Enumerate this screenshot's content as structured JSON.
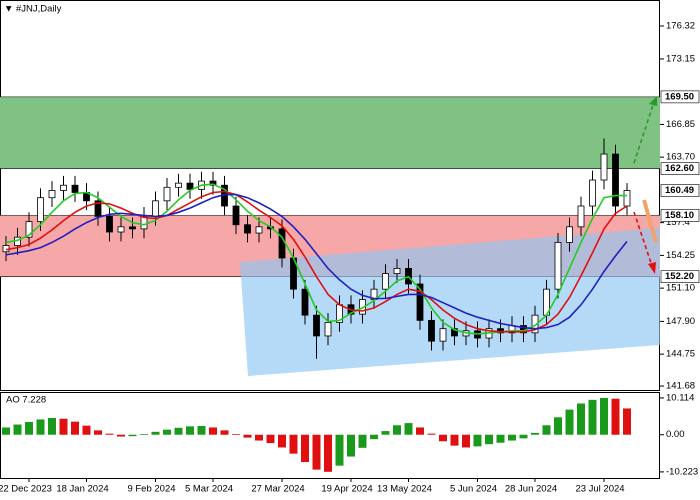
{
  "chart_data": {
    "type": "candlestick",
    "title": "#JNJ,Daily",
    "categories": [
      null,
      null,
      "22 Dec 2023",
      null,
      null,
      null,
      null,
      "18 Jan 2024",
      null,
      null,
      null,
      null,
      null,
      "9 Feb 2024",
      null,
      null,
      null,
      null,
      "5 Mar 2024",
      null,
      null,
      null,
      null,
      null,
      "27 Mar 2024",
      null,
      null,
      null,
      null,
      null,
      "19 Apr 2024",
      null,
      null,
      null,
      null,
      "13 May 2024",
      null,
      null,
      null,
      null,
      null,
      "5 Jun 2024",
      null,
      null,
      null,
      null,
      "28 Jun 2024",
      null,
      null,
      null,
      null,
      null,
      "23 Jul 2024",
      null,
      null
    ],
    "open": [
      154.6,
      155.2,
      156.0,
      157.5,
      159.8,
      160.5,
      161.0,
      160.3,
      159.5,
      158.0,
      156.5,
      157.0,
      156.8,
      158.0,
      159.5,
      160.8,
      161.2,
      160.6,
      161.4,
      161.0,
      159.0,
      157.2,
      156.4,
      157.0,
      156.8,
      154.0,
      151.0,
      148.5,
      146.5,
      147.8,
      149.5,
      148.6,
      150.0,
      151.0,
      152.5,
      153.0,
      151.5,
      148.0,
      146.0,
      147.2,
      146.5,
      147.0,
      146.3,
      147.2,
      146.8,
      147.5,
      146.8,
      148.5,
      151.0,
      155.5,
      157.0,
      159.0,
      161.5,
      164.0,
      159.0
    ],
    "high": [
      156.1,
      156.9,
      158.4,
      160.7,
      161.4,
      161.9,
      161.9,
      161.2,
      160.4,
      158.9,
      157.9,
      157.9,
      158.9,
      160.4,
      161.7,
      162.1,
      162.1,
      162.3,
      162.3,
      161.9,
      159.9,
      158.1,
      157.9,
      157.9,
      157.7,
      154.9,
      151.9,
      149.4,
      148.7,
      150.4,
      150.4,
      150.9,
      151.9,
      153.4,
      153.9,
      153.9,
      152.4,
      148.9,
      148.1,
      148.1,
      147.9,
      147.9,
      148.1,
      148.1,
      148.4,
      148.4,
      149.4,
      151.9,
      156.4,
      157.9,
      159.9,
      162.4,
      165.5,
      164.9,
      161.2
    ],
    "low": [
      153.7,
      154.3,
      155.1,
      156.6,
      158.9,
      159.6,
      159.4,
      158.6,
      157.1,
      155.6,
      155.6,
      155.9,
      155.9,
      157.1,
      158.6,
      159.9,
      159.7,
      159.7,
      160.1,
      158.1,
      156.3,
      155.5,
      155.5,
      155.9,
      153.1,
      150.1,
      147.6,
      144.3,
      145.6,
      146.9,
      147.7,
      147.7,
      149.1,
      150.1,
      151.6,
      150.6,
      147.1,
      145.1,
      145.1,
      145.6,
      145.6,
      145.4,
      145.4,
      145.9,
      145.9,
      145.9,
      145.9,
      147.6,
      150.1,
      154.6,
      156.1,
      158.1,
      160.6,
      158.1,
      158.1
    ],
    "close": [
      155.2,
      156.0,
      157.5,
      159.8,
      160.5,
      161.0,
      160.3,
      159.5,
      158.0,
      156.5,
      157.0,
      156.8,
      158.0,
      159.5,
      160.8,
      161.2,
      160.6,
      161.4,
      161.0,
      159.0,
      157.2,
      156.4,
      157.0,
      156.8,
      154.0,
      151.0,
      148.5,
      146.5,
      147.8,
      149.5,
      148.6,
      150.0,
      151.0,
      152.5,
      153.0,
      151.5,
      148.0,
      146.0,
      147.2,
      146.5,
      147.0,
      146.3,
      147.2,
      146.8,
      147.5,
      146.8,
      148.5,
      151.0,
      155.5,
      157.0,
      159.0,
      161.5,
      164.0,
      159.0,
      160.49
    ],
    "up_color": "#ffffff",
    "down_color": "#000000",
    "series": [
      {
        "color": "#22cc22",
        "values": [
          155.5,
          155.7,
          156.2,
          157.2,
          158.4,
          159.5,
          160.2,
          160.3,
          159.8,
          158.9,
          158.0,
          157.4,
          157.2,
          157.6,
          158.5,
          159.6,
          160.5,
          161.0,
          161.1,
          160.6,
          159.6,
          158.5,
          157.6,
          157.0,
          156.0,
          154.0,
          151.5,
          149.0,
          147.9,
          148.0,
          148.7,
          149.2,
          149.9,
          150.8,
          151.8,
          152.2,
          151.0,
          149.2,
          147.8,
          147.1,
          146.8,
          146.7,
          146.8,
          146.9,
          147.0,
          147.0,
          147.5,
          148.5,
          150.5,
          153.0,
          155.5,
          157.8,
          159.8,
          160.0,
          160.0
        ]
      },
      {
        "color": "#e01010",
        "values": [
          154.8,
          155.0,
          155.3,
          155.9,
          156.7,
          157.6,
          158.4,
          159.0,
          159.3,
          159.2,
          158.8,
          158.3,
          157.9,
          157.8,
          158.1,
          158.7,
          159.3,
          159.9,
          160.3,
          160.4,
          160.1,
          159.4,
          158.6,
          157.9,
          157.1,
          155.8,
          154.1,
          152.2,
          150.5,
          149.5,
          149.0,
          148.9,
          149.2,
          149.8,
          150.5,
          151.0,
          150.8,
          150.0,
          149.0,
          148.2,
          147.6,
          147.2,
          147.0,
          146.9,
          146.9,
          146.9,
          147.1,
          147.6,
          148.6,
          150.2,
          152.3,
          154.5,
          156.8,
          158.3,
          159.0
        ]
      },
      {
        "color": "#2020c0",
        "values": [
          154.3,
          154.5,
          154.7,
          155.0,
          155.5,
          156.1,
          156.8,
          157.4,
          157.9,
          158.2,
          158.3,
          158.2,
          158.1,
          158.0,
          158.1,
          158.4,
          158.8,
          159.3,
          159.8,
          160.1,
          160.1,
          159.8,
          159.3,
          158.7,
          158.0,
          157.0,
          155.8,
          154.4,
          153.0,
          151.9,
          151.0,
          150.4,
          150.1,
          150.1,
          150.3,
          150.5,
          150.5,
          150.2,
          149.7,
          149.2,
          148.7,
          148.3,
          148.0,
          147.7,
          147.5,
          147.3,
          147.2,
          147.3,
          147.6,
          148.3,
          149.5,
          151.0,
          152.7,
          154.2,
          155.6
        ]
      }
    ],
    "ylim": [
      141.3,
      178.82
    ],
    "yticks": [
      176.32,
      173.15,
      166.85,
      {
        "value": 163.7,
        "label": "163.70"
      },
      157.4,
      154.25,
      {
        "value": 151.1,
        "label": "151.10"
      },
      {
        "value": 147.9,
        "label": "147.90"
      },
      144.75,
      141.68
    ],
    "resistance_zone": [
      {
        "value": 169.5,
        "label": "169.50"
      },
      {
        "value": 162.6,
        "label": "162.60"
      }
    ],
    "resistance_color": "#80c184",
    "support_zone": [
      {
        "value": 158.1,
        "label": "158.10"
      },
      {
        "value": 152.2,
        "label": "152.20"
      }
    ],
    "support_color": "#f6a7a7",
    "last_price": 160.49,
    "ao": {
      "title": "AO 7.228",
      "up_color": "#1a9a1a",
      "down_color": "#e01010",
      "values": [
        2.0,
        2.8,
        3.5,
        4.2,
        4.6,
        4.4,
        3.6,
        2.5,
        1.2,
        0.3,
        -0.5,
        -0.4,
        0.2,
        0.8,
        1.4,
        1.9,
        2.3,
        2.4,
        2.0,
        1.2,
        0.2,
        -0.8,
        -1.6,
        -2.3,
        -3.5,
        -5.2,
        -7.5,
        -9.6,
        -10.2,
        -8.5,
        -6.0,
        -3.6,
        -1.2,
        1.0,
        2.6,
        3.2,
        2.0,
        0.3,
        -1.8,
        -3.0,
        -3.5,
        -3.2,
        -2.6,
        -2.2,
        -1.6,
        -1.0,
        0.5,
        2.6,
        4.8,
        6.9,
        8.6,
        9.6,
        10.1,
        9.9,
        7.228
      ],
      "ylim": [
        -11.9,
        11.75
      ],
      "yticks": [
        10.114,
        {
          "value": 0,
          "label": "0.00"
        },
        -10.223
      ]
    }
  }
}
